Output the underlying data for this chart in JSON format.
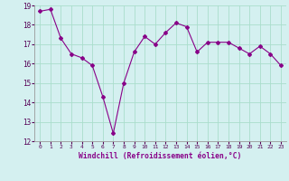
{
  "x": [
    0,
    1,
    2,
    3,
    4,
    5,
    6,
    7,
    8,
    9,
    10,
    11,
    12,
    13,
    14,
    15,
    16,
    17,
    18,
    19,
    20,
    21,
    22,
    23
  ],
  "y": [
    18.7,
    18.8,
    17.3,
    16.5,
    16.3,
    15.9,
    14.3,
    12.4,
    15.0,
    16.6,
    17.4,
    17.0,
    17.6,
    18.1,
    17.9,
    16.6,
    17.1,
    17.1,
    17.1,
    16.8,
    16.5,
    16.9,
    16.5,
    15.9
  ],
  "ylim": [
    12,
    19
  ],
  "yticks": [
    12,
    13,
    14,
    15,
    16,
    17,
    18,
    19
  ],
  "xtick_labels": [
    "0",
    "1",
    "2",
    "3",
    "4",
    "5",
    "6",
    "7",
    "8",
    "9",
    "10",
    "11",
    "12",
    "13",
    "14",
    "15",
    "16",
    "17",
    "18",
    "19",
    "20",
    "21",
    "22",
    "23"
  ],
  "xlabel": "Windchill (Refroidissement éolien,°C)",
  "line_color": "#880088",
  "marker": "D",
  "marker_size": 2,
  "bg_color": "#d4f0f0",
  "grid_color": "#aaddcc",
  "title": ""
}
